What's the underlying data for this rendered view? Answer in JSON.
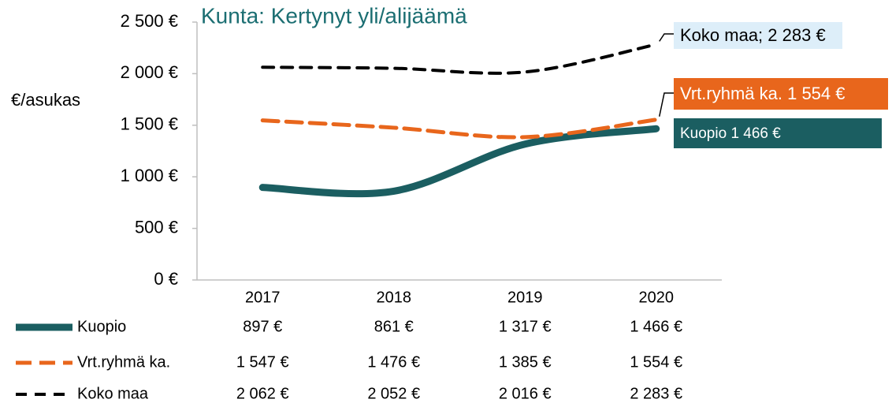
{
  "chart_data": {
    "type": "line",
    "title": "Kunta: Kertynyt yli/alijäämä",
    "y_label": "€/asukas",
    "categories": [
      "2017",
      "2018",
      "2019",
      "2020"
    ],
    "series": [
      {
        "name": "Kuopio",
        "color": "#1b5e61",
        "dash": "solid",
        "values": [
          897,
          861,
          1317,
          1466
        ],
        "value_labels": [
          "897 €",
          "861 €",
          "1 317 €",
          "1 466 €"
        ]
      },
      {
        "name": "Vrt.ryhmä ka.",
        "color": "#e8661c",
        "dash": "dashed",
        "values": [
          1547,
          1476,
          1385,
          1554
        ],
        "value_labels": [
          "1 547 €",
          "1 476 €",
          "1 385 €",
          "1 554 €"
        ]
      },
      {
        "name": "Koko maa",
        "color": "#000000",
        "dash": "dashed",
        "values": [
          2062,
          2052,
          2016,
          2283
        ],
        "value_labels": [
          "2 062 €",
          "2 052 €",
          "2 016 €",
          "2 283 €"
        ]
      }
    ],
    "annotations": [
      "Koko maa; 2 283 €",
      "Vrt.ryhmä ka. 1 554 €",
      "Kuopio 1 466 €"
    ],
    "ylim": [
      0,
      2500
    ],
    "yticks": [
      {
        "value": 0,
        "label": "0 €"
      },
      {
        "value": 500,
        "label": "500 €"
      },
      {
        "value": 1000,
        "label": "1 000 €"
      },
      {
        "value": 1500,
        "label": "1 500 €"
      },
      {
        "value": 2000,
        "label": "2 000 €"
      },
      {
        "value": 2500,
        "label": "2 500 €"
      }
    ]
  }
}
